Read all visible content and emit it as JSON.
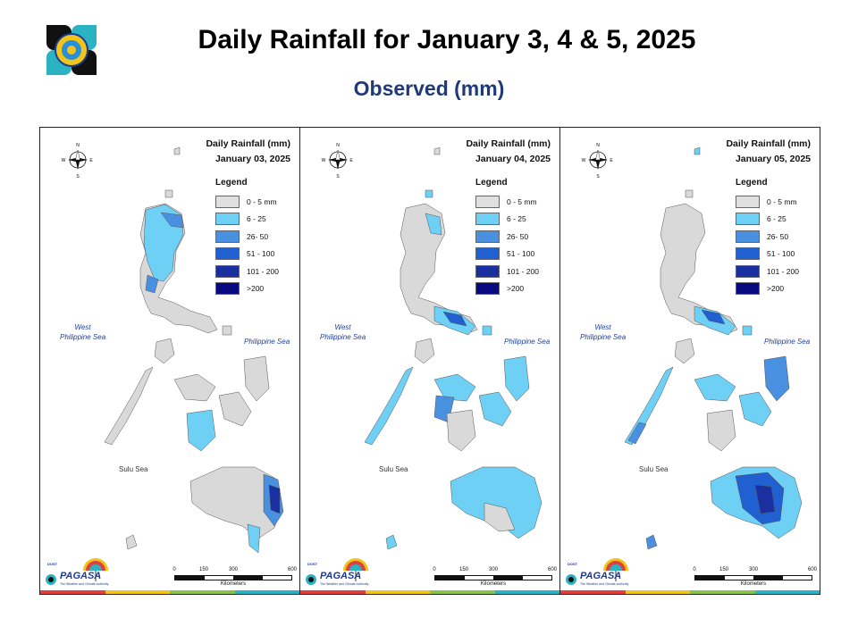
{
  "header": {
    "title": "Daily Rainfall for January 3, 4 & 5, 2025",
    "subtitle": "Observed (mm)"
  },
  "legend": {
    "title": "Legend",
    "classes": [
      {
        "label": "0 - 5 mm",
        "color": "#e0e0e0"
      },
      {
        "label": "6 - 25",
        "color": "#6fd0f5"
      },
      {
        "label": "26- 50",
        "color": "#4a90e0"
      },
      {
        "label": "51 - 100",
        "color": "#2060d0"
      },
      {
        "label": "101 - 200",
        "color": "#1a30a0"
      },
      {
        "label": ">200",
        "color": "#0a0a80"
      }
    ]
  },
  "panels": [
    {
      "title_line1": "Daily Rainfall (mm)",
      "title_line2": "January 03, 2025",
      "wet_regions": [
        "northern-luzon",
        "central-luzon",
        "east-mindanao",
        "panay-negros"
      ]
    },
    {
      "title_line1": "Daily Rainfall (mm)",
      "title_line2": "January 04, 2025",
      "wet_regions": [
        "bicol",
        "visayas",
        "mindanao",
        "palawan"
      ]
    },
    {
      "title_line1": "Daily Rainfall (mm)",
      "title_line2": "January 05, 2025",
      "wet_regions": [
        "bicol",
        "eastern-visayas",
        "central-mindanao",
        "palawan"
      ]
    }
  ],
  "map_labels": {
    "west_sea_1": "West",
    "west_sea_2": "Philippine Sea",
    "east_sea": "Philippine Sea",
    "sulu_sea": "Sulu Sea"
  },
  "compass": {
    "n": "N",
    "s": "S",
    "e": "E",
    "w": "W"
  },
  "scale": {
    "t0": "0",
    "t1": "150",
    "t2": "300",
    "t3": "600",
    "unit": "Kilometers"
  },
  "brand": {
    "top": "DOST",
    "name": "PAGASA",
    "tag": "The Weather and Climate Authority"
  },
  "icons": [
    "pagasa-seal-icon",
    "compass-rose-icon",
    "rainbow-umbrella-icon"
  ]
}
